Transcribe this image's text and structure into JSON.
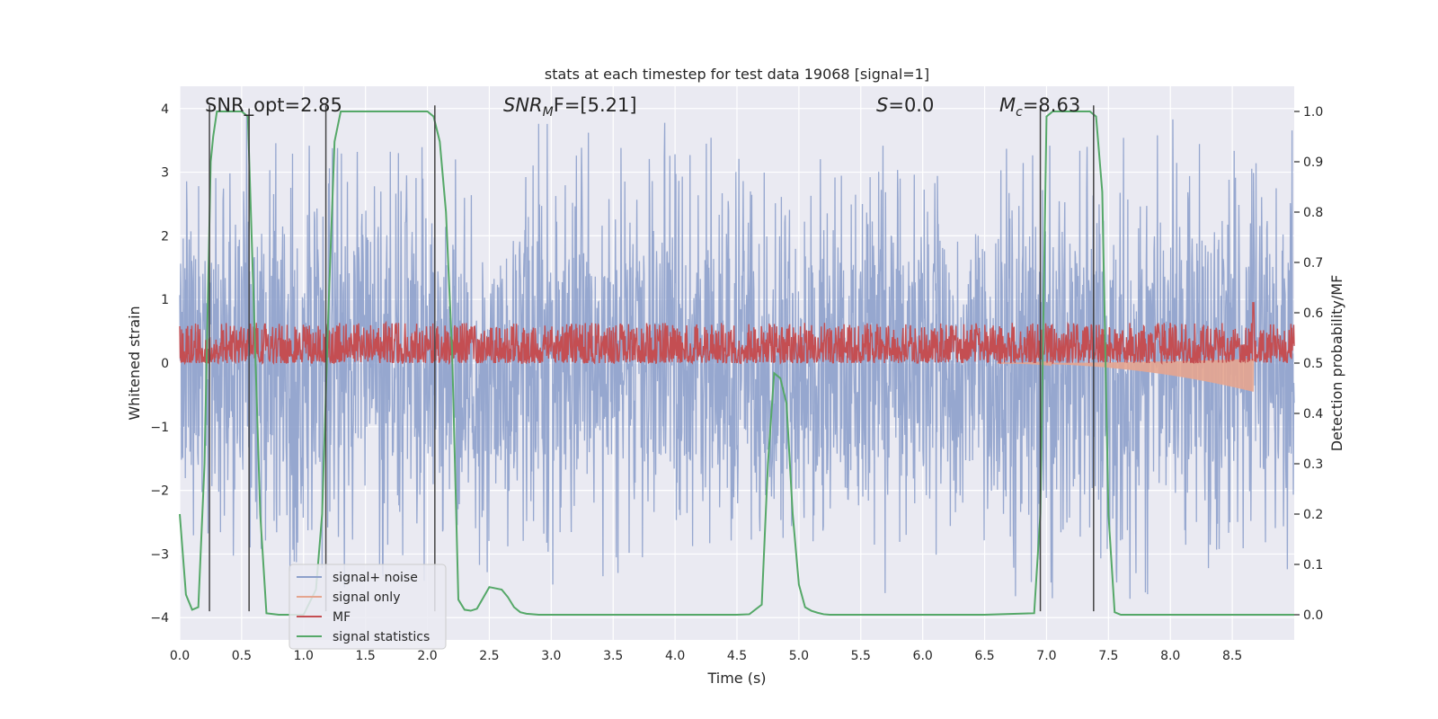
{
  "chart_data": {
    "type": "line",
    "title": "stats at each timestep for test data 19068 [signal=1]",
    "xlabel": "Time (s)",
    "ylabel_left": "Whitened strain",
    "ylabel_right": "Detection probability/MF",
    "xlim": [
      0,
      9.0
    ],
    "ylim_left": [
      -4.35,
      4.35
    ],
    "ylim_right": [
      -0.05,
      1.05
    ],
    "x_ticks": [
      0.0,
      0.5,
      1.0,
      1.5,
      2.0,
      2.5,
      3.0,
      3.5,
      4.0,
      4.5,
      5.0,
      5.5,
      6.0,
      6.5,
      7.0,
      7.5,
      8.0,
      8.5
    ],
    "x_tick_labels": [
      "0.0",
      "0.5",
      "1.0",
      "1.5",
      "2.0",
      "2.5",
      "3.0",
      "3.5",
      "4.0",
      "4.5",
      "5.0",
      "5.5",
      "6.0",
      "6.5",
      "7.0",
      "7.5",
      "8.0",
      "8.5"
    ],
    "y_left_ticks": [
      4,
      3,
      2,
      1,
      0,
      -1,
      -2,
      -3,
      -4
    ],
    "y_left_tick_labels": [
      "4",
      "3",
      "2",
      "1",
      "0",
      "−1",
      "−2",
      "−3",
      "−4"
    ],
    "y_right_ticks": [
      1.0,
      0.9,
      0.8,
      0.7,
      0.6,
      0.5,
      0.4,
      0.3,
      0.2,
      0.1,
      0.0
    ],
    "y_right_tick_labels": [
      "1.0",
      "0.9",
      "0.8",
      "0.7",
      "0.6",
      "0.5",
      "0.4",
      "0.3",
      "0.2",
      "0.1",
      "0.0"
    ],
    "grid": true,
    "legend_position": "lower-left",
    "annotations": {
      "snr_opt": "SNR_opt=2.85",
      "snr_mf_base": "SNR",
      "snr_mf_sub": "M",
      "snr_mf_rest": "F=[5.21]",
      "s_base": "S",
      "s_rest": "=0.0",
      "mc_base": "M",
      "mc_sub": "c",
      "mc_rest": "=8.63"
    },
    "series": [
      {
        "name": "signal+ noise",
        "color": "#8da0cb",
        "axis": "left",
        "style": "noise",
        "envelope": {
          "core_low": -1.55,
          "core_high": 1.65,
          "spike_max": 4.0,
          "spike_min": -3.9
        }
      },
      {
        "name": "signal only",
        "color": "#e5a58f",
        "axis": "left",
        "style": "chirp",
        "chirp": {
          "x_start": 6.6,
          "x_end": 8.67,
          "amp_end": 0.45
        }
      },
      {
        "name": "MF",
        "color": "#c44e52",
        "axis": "right",
        "style": "mf",
        "mf": {
          "baseline": 0.5,
          "max_above": 0.58,
          "peak_x": 8.67,
          "peak_value": 0.62
        }
      },
      {
        "name": "signal statistics",
        "color": "#55a868",
        "axis": "right",
        "style": "line",
        "x": [
          0.0,
          0.05,
          0.1,
          0.12,
          0.15,
          0.2,
          0.25,
          0.27,
          0.3,
          0.4,
          0.5,
          0.55,
          0.6,
          0.65,
          0.7,
          0.8,
          0.9,
          1.0,
          1.1,
          1.15,
          1.2,
          1.25,
          1.3,
          1.4,
          1.6,
          1.8,
          2.0,
          2.05,
          2.1,
          2.15,
          2.2,
          2.25,
          2.3,
          2.35,
          2.4,
          2.5,
          2.6,
          2.65,
          2.7,
          2.75,
          2.8,
          2.9,
          3.0,
          3.5,
          4.0,
          4.5,
          4.6,
          4.7,
          4.75,
          4.8,
          4.85,
          4.9,
          4.95,
          5.0,
          5.05,
          5.1,
          5.15,
          5.2,
          5.25,
          5.5,
          6.0,
          6.5,
          6.9,
          6.95,
          7.0,
          7.05,
          7.1,
          7.2,
          7.3,
          7.35,
          7.4,
          7.45,
          7.5,
          7.55,
          7.6,
          8.0,
          8.5,
          9.0
        ],
        "values": [
          0.2,
          0.04,
          0.01,
          0.012,
          0.015,
          0.3,
          0.9,
          0.95,
          1.0,
          1.0,
          1.0,
          0.99,
          0.6,
          0.2,
          0.003,
          0.0,
          0.0,
          0.0,
          0.05,
          0.2,
          0.6,
          0.94,
          1.0,
          1.0,
          1.0,
          1.0,
          1.0,
          0.99,
          0.94,
          0.8,
          0.52,
          0.03,
          0.01,
          0.008,
          0.012,
          0.055,
          0.05,
          0.035,
          0.015,
          0.005,
          0.002,
          0.0,
          0.0,
          0.0,
          0.0,
          0.0,
          0.001,
          0.02,
          0.3,
          0.48,
          0.47,
          0.42,
          0.2,
          0.06,
          0.015,
          0.008,
          0.004,
          0.001,
          0.0,
          0.0,
          0.0,
          0.0,
          0.003,
          0.2,
          0.99,
          1.0,
          1.0,
          1.0,
          1.0,
          1.0,
          0.99,
          0.84,
          0.2,
          0.005,
          0.0,
          0.0,
          0.0,
          0.0
        ]
      }
    ],
    "vertical_lines": {
      "color": "#444444",
      "segments": [
        {
          "x": 0.24,
          "y_top": 4.05,
          "y_bottom": -3.9
        },
        {
          "x": 0.56,
          "y_top": 4.0,
          "y_bottom": -3.9
        },
        {
          "x": 1.18,
          "y_top": 4.05,
          "y_bottom": -3.9
        },
        {
          "x": 2.06,
          "y_top": 4.05,
          "y_bottom": -3.9
        },
        {
          "x": 6.95,
          "y_top": 4.05,
          "y_bottom": -3.9
        },
        {
          "x": 7.38,
          "y_top": 4.05,
          "y_bottom": -3.9
        }
      ]
    }
  }
}
